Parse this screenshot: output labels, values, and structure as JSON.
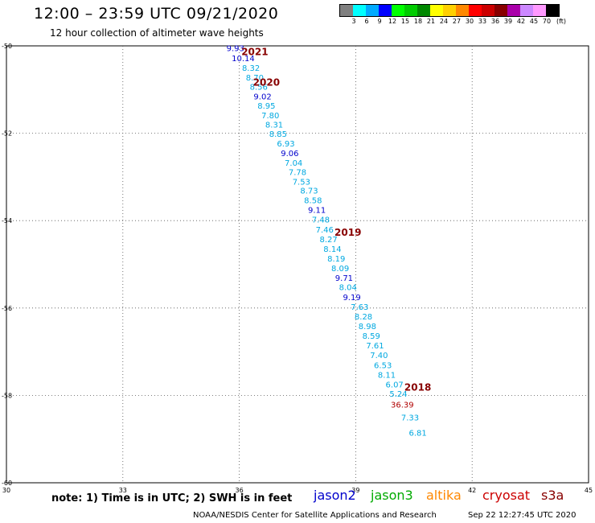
{
  "title": "12:00 – 23:59 UTC 09/21/2020",
  "subtitle": "12 hour collection of altimeter wave heights",
  "legend": {
    "unit": "(ft)",
    "colors": [
      "#808080",
      "#00ffff",
      "#00aaff",
      "#0000ff",
      "#00ff00",
      "#00cc00",
      "#008800",
      "#ffff00",
      "#ffd000",
      "#ff8800",
      "#ff0000",
      "#cc0000",
      "#880000",
      "#aa00aa",
      "#cc88ff",
      "#ff99ff",
      "#000000"
    ],
    "ticks": [
      "3",
      "6",
      "9",
      "12",
      "15",
      "18",
      "21",
      "24",
      "27",
      "30",
      "33",
      "36",
      "39",
      "42",
      "45",
      "70"
    ]
  },
  "note": "note: 1) Time is in UTC; 2) SWH is in feet",
  "satellites": [
    {
      "name": "jason2",
      "color": "#0000cc"
    },
    {
      "name": "jason3",
      "color": "#00aa00"
    },
    {
      "name": "altika",
      "color": "#ff8800"
    },
    {
      "name": "cryosat",
      "color": "#cc0000"
    },
    {
      "name": "s3a",
      "color": "#880000"
    }
  ],
  "credit": "NOAA/NESDIS Center for Satellite Applications and Research",
  "timestamp": "Sep 22 12:27:45 UTC 2020",
  "chart_data": {
    "type": "scatter",
    "x_ticks": [
      "30",
      "33",
      "36",
      "39",
      "42",
      "45"
    ],
    "y_ticks": [
      "-50",
      "-52",
      "-54",
      "-56",
      "-58",
      "-60"
    ],
    "xlim": [
      30,
      45
    ],
    "ylim": [
      -60,
      -50
    ],
    "grid": true,
    "colors": {
      "light": "#00a8e0",
      "dark": "#0000cc",
      "red": "#b00000",
      "year": "#880000"
    },
    "points": [
      {
        "lon": 35.9,
        "lat": -50.05,
        "label": "9.93",
        "color": "dark"
      },
      {
        "lon": 36.1,
        "lat": -50.28,
        "label": "10.14",
        "color": "dark"
      },
      {
        "lon": 36.3,
        "lat": -50.5,
        "label": "8.32",
        "color": "light"
      },
      {
        "lon": 36.4,
        "lat": -50.72,
        "label": "8.70",
        "color": "light"
      },
      {
        "lon": 36.5,
        "lat": -50.93,
        "label": "8.56",
        "color": "light"
      },
      {
        "lon": 36.6,
        "lat": -51.15,
        "label": "9.02",
        "color": "dark"
      },
      {
        "lon": 36.7,
        "lat": -51.36,
        "label": "8.95",
        "color": "light"
      },
      {
        "lon": 36.8,
        "lat": -51.58,
        "label": "7.80",
        "color": "light"
      },
      {
        "lon": 36.9,
        "lat": -51.8,
        "label": "8.31",
        "color": "light"
      },
      {
        "lon": 37.0,
        "lat": -52.01,
        "label": "8.85",
        "color": "light"
      },
      {
        "lon": 37.2,
        "lat": -52.23,
        "label": "6.93",
        "color": "light"
      },
      {
        "lon": 37.3,
        "lat": -52.45,
        "label": "9.06",
        "color": "dark"
      },
      {
        "lon": 37.4,
        "lat": -52.67,
        "label": "7.04",
        "color": "light"
      },
      {
        "lon": 37.5,
        "lat": -52.88,
        "label": "7.78",
        "color": "light"
      },
      {
        "lon": 37.6,
        "lat": -53.1,
        "label": "7.53",
        "color": "light"
      },
      {
        "lon": 37.8,
        "lat": -53.31,
        "label": "8.73",
        "color": "light"
      },
      {
        "lon": 37.9,
        "lat": -53.53,
        "label": "8.58",
        "color": "light"
      },
      {
        "lon": 38.0,
        "lat": -53.75,
        "label": "9.11",
        "color": "dark"
      },
      {
        "lon": 38.1,
        "lat": -53.97,
        "label": "7.48",
        "color": "light"
      },
      {
        "lon": 38.2,
        "lat": -54.2,
        "label": "7.46",
        "color": "light"
      },
      {
        "lon": 38.3,
        "lat": -54.42,
        "label": "8.27",
        "color": "light"
      },
      {
        "lon": 38.4,
        "lat": -54.64,
        "label": "8.14",
        "color": "light"
      },
      {
        "lon": 38.5,
        "lat": -54.86,
        "label": "8.19",
        "color": "light"
      },
      {
        "lon": 38.6,
        "lat": -55.08,
        "label": "8.09",
        "color": "light"
      },
      {
        "lon": 38.7,
        "lat": -55.3,
        "label": "9.71",
        "color": "dark"
      },
      {
        "lon": 38.8,
        "lat": -55.52,
        "label": "8.04",
        "color": "light"
      },
      {
        "lon": 38.9,
        "lat": -55.75,
        "label": "9.19",
        "color": "dark"
      },
      {
        "lon": 39.1,
        "lat": -55.97,
        "label": "7.63",
        "color": "light"
      },
      {
        "lon": 39.2,
        "lat": -56.19,
        "label": "8.28",
        "color": "light"
      },
      {
        "lon": 39.3,
        "lat": -56.41,
        "label": "8.98",
        "color": "light"
      },
      {
        "lon": 39.4,
        "lat": -56.63,
        "label": "8.59",
        "color": "light"
      },
      {
        "lon": 39.5,
        "lat": -56.85,
        "label": "7.61",
        "color": "light"
      },
      {
        "lon": 39.6,
        "lat": -57.07,
        "label": "7.40",
        "color": "light"
      },
      {
        "lon": 39.7,
        "lat": -57.3,
        "label": "6.53",
        "color": "light"
      },
      {
        "lon": 39.8,
        "lat": -57.52,
        "label": "8.11",
        "color": "light"
      },
      {
        "lon": 40.0,
        "lat": -57.74,
        "label": "6.07",
        "color": "light"
      },
      {
        "lon": 40.1,
        "lat": -57.96,
        "label": "5.24",
        "color": "light"
      },
      {
        "lon": 40.2,
        "lat": -58.2,
        "label": "36.39",
        "color": "red"
      },
      {
        "lon": 40.4,
        "lat": -58.5,
        "label": "7.33",
        "color": "light"
      },
      {
        "lon": 40.6,
        "lat": -58.85,
        "label": "6.81",
        "color": "light"
      }
    ],
    "year_labels": [
      {
        "lon": 36.4,
        "lat": -50.12,
        "label": "2021"
      },
      {
        "lon": 36.7,
        "lat": -50.82,
        "label": "2020"
      },
      {
        "lon": 38.8,
        "lat": -54.25,
        "label": "2019"
      },
      {
        "lon": 40.6,
        "lat": -57.8,
        "label": "2018"
      }
    ]
  }
}
